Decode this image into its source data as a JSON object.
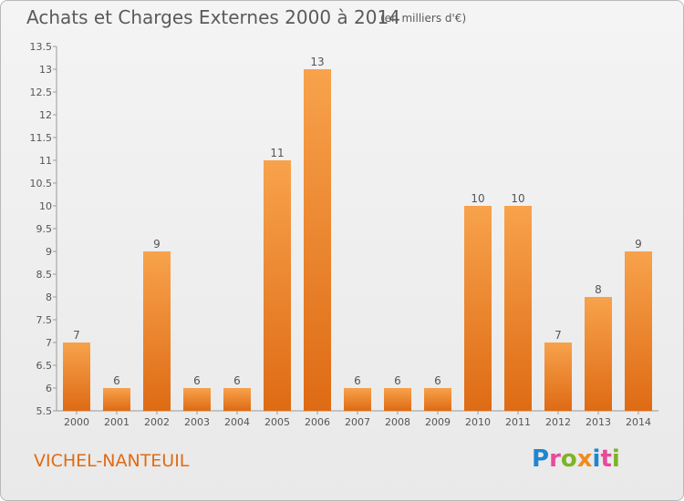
{
  "header": {
    "title": "Achats et Charges Externes 2000 à 2014",
    "subtitle": "(en milliers d'€)"
  },
  "footer": {
    "commune": "VICHEL-NANTEUIL",
    "logo_text": "Proxiti"
  },
  "colors": {
    "bar_top": "#f8a24c",
    "bar_bottom": "#de6b14",
    "commune_text": "#e26a12",
    "logo_letters": [
      "#1f86d1",
      "#e84a9b",
      "#7fb327",
      "#f28a1e",
      "#1f86d1",
      "#e84a9b",
      "#7fb327"
    ]
  },
  "chart_data": {
    "type": "bar",
    "categories": [
      "2000",
      "2001",
      "2002",
      "2003",
      "2004",
      "2005",
      "2006",
      "2007",
      "2008",
      "2009",
      "2010",
      "2011",
      "2012",
      "2013",
      "2014"
    ],
    "values": [
      7,
      6,
      9,
      6,
      6,
      11,
      13,
      6,
      6,
      6,
      10,
      10,
      7,
      8,
      9
    ],
    "data_labels": [
      "7",
      "6",
      "9",
      "6",
      "6",
      "11",
      "13",
      "6",
      "6",
      "6",
      "10",
      "10",
      "7",
      "8",
      "9"
    ],
    "ylim": [
      5.5,
      13.5
    ],
    "yticks": [
      5.5,
      6,
      6.5,
      7,
      7.5,
      8,
      8.5,
      9,
      9.5,
      10,
      10.5,
      11,
      11.5,
      12,
      12.5,
      13,
      13.5
    ],
    "ytick_labels": [
      "5.5",
      "6",
      "6.5",
      "7",
      "7.5",
      "8",
      "8.5",
      "9",
      "9.5",
      "10",
      "10.5",
      "11",
      "11.5",
      "12",
      "12.5",
      "13",
      "13.5"
    ],
    "grid": false,
    "legend": "none"
  }
}
